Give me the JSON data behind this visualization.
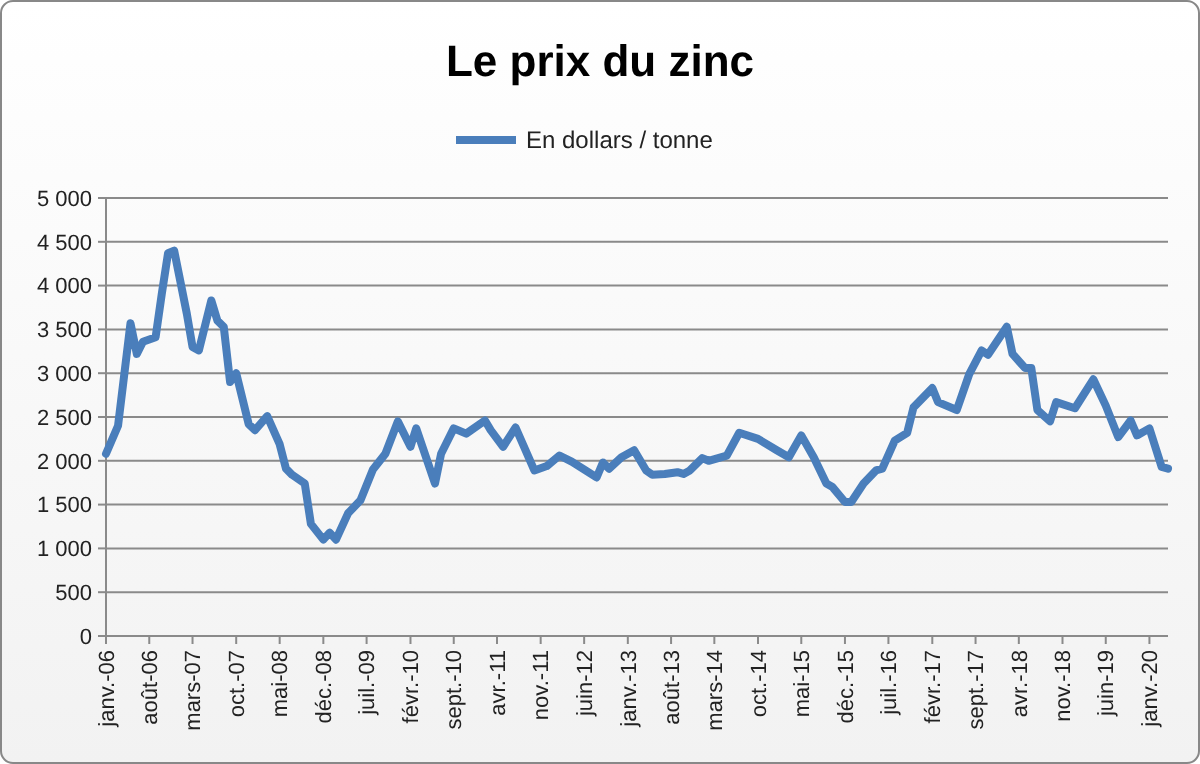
{
  "chart_data": {
    "type": "line",
    "title": "Le prix du zinc",
    "x": [
      "2006-01",
      "2006-03",
      "2006-05",
      "2006-06",
      "2006-07",
      "2006-09",
      "2006-10",
      "2006-11",
      "2006-12",
      "2007-02",
      "2007-03",
      "2007-04",
      "2007-06",
      "2007-07",
      "2007-08",
      "2007-09",
      "2007-10",
      "2007-12",
      "2008-01",
      "2008-03",
      "2008-05",
      "2008-06",
      "2008-07",
      "2008-09",
      "2008-10",
      "2008-12",
      "2009-01",
      "2009-02",
      "2009-04",
      "2009-06",
      "2009-08",
      "2009-10",
      "2009-12",
      "2010-02",
      "2010-03",
      "2010-06",
      "2010-07",
      "2010-09",
      "2010-11",
      "2011-02",
      "2011-03",
      "2011-05",
      "2011-07",
      "2011-10",
      "2011-12",
      "2012-02",
      "2012-04",
      "2012-08",
      "2012-09",
      "2012-10",
      "2012-12",
      "2013-02",
      "2013-04",
      "2013-05",
      "2013-07",
      "2013-09",
      "2013-10",
      "2013-11",
      "2014-01",
      "2014-02",
      "2014-05",
      "2014-07",
      "2014-10",
      "2015-01",
      "2015-03",
      "2015-05",
      "2015-07",
      "2015-09",
      "2015-10",
      "2015-12",
      "2016-01",
      "2016-03",
      "2016-05",
      "2016-06",
      "2016-08",
      "2016-10",
      "2016-11",
      "2017-02",
      "2017-03",
      "2017-06",
      "2017-08",
      "2017-10",
      "2017-11",
      "2018-02",
      "2018-03",
      "2018-05",
      "2018-06",
      "2018-07",
      "2018-09",
      "2018-10",
      "2019-01",
      "2019-04",
      "2019-06",
      "2019-08",
      "2019-10",
      "2019-11",
      "2020-01",
      "2020-03",
      "2020-04"
    ],
    "series": [
      {
        "name": "En dollars / tonne",
        "color": "#4a7ebb",
        "values": [
          2080,
          2400,
          3570,
          3220,
          3360,
          3410,
          3900,
          4370,
          4400,
          3680,
          3300,
          3260,
          3830,
          3600,
          3530,
          2900,
          3000,
          2420,
          2350,
          2510,
          2190,
          1910,
          1840,
          1740,
          1280,
          1100,
          1180,
          1100,
          1400,
          1550,
          1900,
          2080,
          2450,
          2160,
          2370,
          1740,
          2080,
          2370,
          2310,
          2460,
          2350,
          2160,
          2380,
          1890,
          1940,
          2060,
          1990,
          1810,
          1980,
          1910,
          2040,
          2120,
          1890,
          1840,
          1850,
          1870,
          1850,
          1890,
          2030,
          2000,
          2060,
          2320,
          2250,
          2120,
          2040,
          2290,
          2040,
          1740,
          1700,
          1530,
          1530,
          1740,
          1890,
          1910,
          2230,
          2320,
          2610,
          2830,
          2670,
          2580,
          2990,
          3260,
          3210,
          3530,
          3220,
          3060,
          3060,
          2580,
          2450,
          2670,
          2600,
          2930,
          2630,
          2270,
          2460,
          2290,
          2370,
          1930,
          1910
        ]
      }
    ],
    "xlim": [
      "2006-01",
      "2020-04"
    ],
    "xticks": [
      {
        "value": "2006-01",
        "label": "janv.-06"
      },
      {
        "value": "2006-08",
        "label": "août-06"
      },
      {
        "value": "2007-03",
        "label": "mars-07"
      },
      {
        "value": "2007-10",
        "label": "oct.-07"
      },
      {
        "value": "2008-05",
        "label": "mai-08"
      },
      {
        "value": "2008-12",
        "label": "déc.-08"
      },
      {
        "value": "2009-07",
        "label": "juil.-09"
      },
      {
        "value": "2010-02",
        "label": "févr.-10"
      },
      {
        "value": "2010-09",
        "label": "sept.-10"
      },
      {
        "value": "2011-04",
        "label": "avr.-11"
      },
      {
        "value": "2011-11",
        "label": "nov.-11"
      },
      {
        "value": "2012-06",
        "label": "juin-12"
      },
      {
        "value": "2013-01",
        "label": "janv.-13"
      },
      {
        "value": "2013-08",
        "label": "août-13"
      },
      {
        "value": "2014-03",
        "label": "mars-14"
      },
      {
        "value": "2014-10",
        "label": "oct.-14"
      },
      {
        "value": "2015-05",
        "label": "mai-15"
      },
      {
        "value": "2015-12",
        "label": "déc.-15"
      },
      {
        "value": "2016-07",
        "label": "juil.-16"
      },
      {
        "value": "2017-02",
        "label": "févr.-17"
      },
      {
        "value": "2017-09",
        "label": "sept.-17"
      },
      {
        "value": "2018-04",
        "label": "avr.-18"
      },
      {
        "value": "2018-11",
        "label": "nov.-18"
      },
      {
        "value": "2019-06",
        "label": "juin-19"
      },
      {
        "value": "2020-01",
        "label": "janv.-20"
      }
    ],
    "ylim": [
      0,
      5000
    ],
    "yticks": [
      0,
      500,
      {
        "value": 1000,
        "label": "1 000"
      },
      {
        "value": 1500,
        "label": "1 500"
      },
      {
        "value": 2000,
        "label": "2 000"
      },
      {
        "value": 2500,
        "label": "2 500"
      },
      {
        "value": 3000,
        "label": "3 000"
      },
      {
        "value": 3500,
        "label": "3 500"
      },
      {
        "value": 4000,
        "label": "4 000"
      },
      {
        "value": 4500,
        "label": "4 500"
      },
      {
        "value": 5000,
        "label": "5 000"
      }
    ],
    "grid": "y",
    "legend": "top",
    "marker": "none",
    "line_style": "solid"
  }
}
